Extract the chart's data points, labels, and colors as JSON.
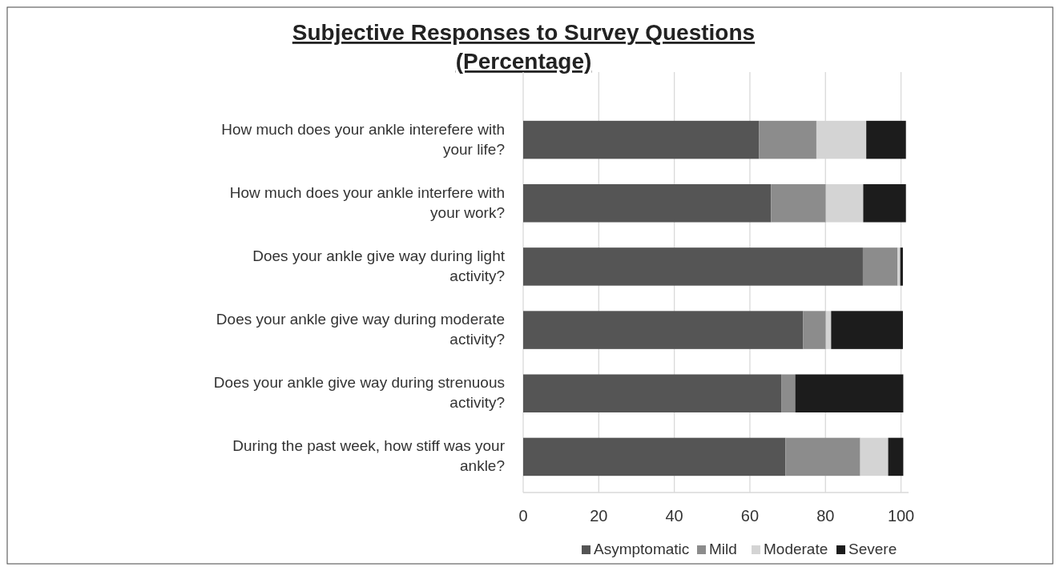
{
  "chart_data": {
    "type": "bar",
    "orientation": "horizontal",
    "stacked": true,
    "title": "Subjective Responses to Survey Questions\n(Percentage)",
    "categories": [
      "How much does your ankle interefere with your life?",
      "How much does your ankle interfere with your work?",
      "Does your ankle give way during light activity?",
      "Does your ankle give way during moderate activity?",
      "Does your ankle give way during strenuous activity?",
      "During the past week, how stiff was your ankle?"
    ],
    "series": [
      {
        "name": "Asymptomatic",
        "color": "#555555",
        "values": [
          62.4,
          65.6,
          89.9,
          74.1,
          68.3,
          69.4
        ]
      },
      {
        "name": "Mild",
        "color": "#8c8c8c",
        "values": [
          15.2,
          14.5,
          9.2,
          6.0,
          3.7,
          19.8
        ]
      },
      {
        "name": "Moderate",
        "color": "#d4d4d4",
        "values": [
          13.2,
          9.9,
          0.7,
          1.4,
          0,
          7.4
        ]
      },
      {
        "name": "Severe",
        "color": "#1c1c1c",
        "values": [
          10.5,
          11.3,
          0.7,
          19.0,
          28.6,
          4.0
        ]
      }
    ],
    "xlim": [
      0,
      102
    ],
    "xticks": [
      0,
      20,
      40,
      60,
      80,
      100
    ],
    "grid": "x",
    "legend": "bottom"
  }
}
